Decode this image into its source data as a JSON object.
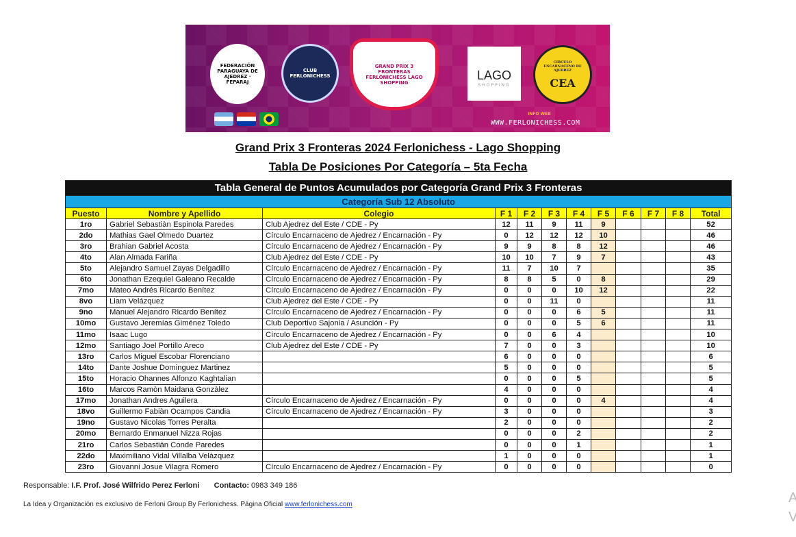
{
  "banner": {
    "left_logo_1": "FEDERACIÓN PARAGUAYA DE AJEDREZ · FEPARAJ",
    "left_logo_2": "CLUB FERLONICHESS",
    "center_logo": "GRAND PRIX 3 FRONTERAS FERLONICHESS LAGO SHOPPING",
    "sponsor": "LAGO",
    "sponsor_sub": "SHOPPING",
    "right_logo": "CEA",
    "right_logo_ring": "CIRCULO ENCARNACENO DE AJEDREZ",
    "info_label": "INFO WEB",
    "info_url": "WWW.FERLONICHESS.COM",
    "flags": [
      "argentina",
      "paraguay",
      "brazil"
    ]
  },
  "title1": "Grand Prix 3 Fronteras 2024 Ferlonichess - Lago Shopping",
  "title2": "Tabla De Posiciones Por Categoría – 5ta Fecha",
  "table": {
    "title": "Tabla General de Puntos Acumulados por Categoría Grand Prix 3 Fronteras",
    "category": "Categoría Sub 12 Absoluto",
    "headers": [
      "Puesto",
      "Nombre y Apellido",
      "Colegio",
      "F 1",
      "F 2",
      "F 3",
      "F 4",
      "F 5",
      "F 6",
      "F 7",
      "F 8",
      "Total"
    ],
    "rows": [
      [
        "1ro",
        "Gabriel Sebastiàn Espinola Paredes",
        "Club Ajedrez del Este / CDE - Py",
        "12",
        "11",
        "9",
        "11",
        "9",
        "",
        "",
        "",
        "52"
      ],
      [
        "2do",
        "Mathias Gael Olmedo Duartez",
        "Círculo Encarnaceno de Ajedrez / Encarnación - Py",
        "0",
        "12",
        "12",
        "12",
        "10",
        "",
        "",
        "",
        "46"
      ],
      [
        "3ro",
        "Brahian Gabriel Acosta",
        "Círculo Encarnaceno de Ajedrez / Encarnación - Py",
        "9",
        "9",
        "8",
        "8",
        "12",
        "",
        "",
        "",
        "46"
      ],
      [
        "4to",
        "Alan Almada Fariña",
        "Club Ajedrez del Este / CDE - Py",
        "10",
        "10",
        "7",
        "9",
        "7",
        "",
        "",
        "",
        "43"
      ],
      [
        "5to",
        "Alejandro Samuel Zayas Delgadillo",
        "Círculo Encarnaceno de Ajedrez / Encarnación - Py",
        "11",
        "7",
        "10",
        "7",
        "",
        "",
        "",
        "",
        "35"
      ],
      [
        "6to",
        "Jonathan Ezequiel Galeano Recalde",
        "Círculo Encarnaceno de Ajedrez / Encarnación - Py",
        "8",
        "8",
        "5",
        "0",
        "8",
        "",
        "",
        "",
        "29"
      ],
      [
        "7mo",
        "Mateo Andrés Ricardo Benítez",
        "Círculo Encarnaceno de Ajedrez / Encarnación - Py",
        "0",
        "0",
        "0",
        "10",
        "12",
        "",
        "",
        "",
        "22"
      ],
      [
        "8vo",
        "Liam Velázquez",
        "Club Ajedrez del Este / CDE - Py",
        "0",
        "0",
        "11",
        "0",
        "",
        "",
        "",
        "",
        "11"
      ],
      [
        "9no",
        "Manuel Alejandro Ricardo Benítez",
        "Círculo Encarnaceno de Ajedrez / Encarnación - Py",
        "0",
        "0",
        "0",
        "6",
        "5",
        "",
        "",
        "",
        "11"
      ],
      [
        "10mo",
        "Gustavo Jeremías Giménez Toledo",
        "Club Deportivo Sajonia / Asunción - Py",
        "0",
        "0",
        "0",
        "5",
        "6",
        "",
        "",
        "",
        "11"
      ],
      [
        "11mo",
        "Isaac Lugo",
        "Círculo Encarnaceno de Ajedrez / Encarnación - Py",
        "0",
        "0",
        "6",
        "4",
        "",
        "",
        "",
        "",
        "10"
      ],
      [
        "12mo",
        "Santiago Joel Portillo Areco",
        "Club Ajedrez del Este / CDE - Py",
        "7",
        "0",
        "0",
        "3",
        "",
        "",
        "",
        "",
        "10"
      ],
      [
        "13ro",
        "Carlos Miguel Escobar Florenciano",
        "",
        "6",
        "0",
        "0",
        "0",
        "",
        "",
        "",
        "",
        "6"
      ],
      [
        "14to",
        "Dante Joshue Dominguez Martinez",
        "",
        "5",
        "0",
        "0",
        "0",
        "",
        "",
        "",
        "",
        "5"
      ],
      [
        "15to",
        "Horacio Ohannes Alfonzo Kaghtalian",
        "",
        "0",
        "0",
        "0",
        "5",
        "",
        "",
        "",
        "",
        "5"
      ],
      [
        "16to",
        "Marcos Ramòn Maidana Gonzàlez",
        "",
        "4",
        "0",
        "0",
        "0",
        "",
        "",
        "",
        "",
        "4"
      ],
      [
        "17mo",
        "Jonathan Andres Aguilera",
        "Círculo Encarnaceno de Ajedrez / Encarnación - Py",
        "0",
        "0",
        "0",
        "0",
        "4",
        "",
        "",
        "",
        "4"
      ],
      [
        "18vo",
        "Guillermo Fabiàn Ocampos Candia",
        "Círculo Encarnaceno de Ajedrez / Encarnación - Py",
        "3",
        "0",
        "0",
        "0",
        "",
        "",
        "",
        "",
        "3"
      ],
      [
        "19no",
        "Gustavo Nicolas Torres Peralta",
        "",
        "2",
        "0",
        "0",
        "0",
        "",
        "",
        "",
        "",
        "2"
      ],
      [
        "20mo",
        "Bernardo Enmanuel Nizza Rojas",
        "",
        "0",
        "0",
        "0",
        "2",
        "",
        "",
        "",
        "",
        "2"
      ],
      [
        "21ro",
        "Carlos Sebastián Conde Paredes",
        "",
        "0",
        "0",
        "0",
        "1",
        "",
        "",
        "",
        "",
        "1"
      ],
      [
        "22do",
        "Maximiliano Vidal Villalba Velàzquez",
        "",
        "1",
        "0",
        "0",
        "0",
        "",
        "",
        "",
        "",
        "1"
      ],
      [
        "23ro",
        "Giovanni Josue Vilagra Romero",
        "Círculo Encarnaceno de Ajedrez / Encarnación - Py",
        "0",
        "0",
        "0",
        "0",
        "",
        "",
        "",
        "",
        "0"
      ]
    ]
  },
  "footer": {
    "resp_label": "Responsable: ",
    "resp_name": "I.F. Prof. José Wilfrido Perez Ferloni",
    "contact_label": "Contacto:",
    "contact_value": " 0983 349 186",
    "line2": "La Idea y Organización es exclusivo de Ferloni Group By Ferlonichess. Página Oficial ",
    "link": "www.ferlonichess.com"
  },
  "watermark": [
    "A",
    "V"
  ]
}
